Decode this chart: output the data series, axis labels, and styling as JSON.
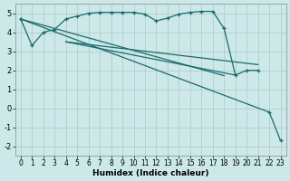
{
  "xlabel": "Humidex (Indice chaleur)",
  "bg_color": "#cce8e8",
  "grid_color": "#b0c8c8",
  "line_color": "#1a6b6b",
  "xlim": [
    -0.5,
    23.5
  ],
  "ylim": [
    -2.5,
    5.5
  ],
  "yticks": [
    -2,
    -1,
    0,
    1,
    2,
    3,
    4,
    5
  ],
  "xticks": [
    0,
    1,
    2,
    3,
    4,
    5,
    6,
    7,
    8,
    9,
    10,
    11,
    12,
    13,
    14,
    15,
    16,
    17,
    18,
    19,
    20,
    21,
    22,
    23
  ],
  "series": {
    "top_curve": {
      "x": [
        0,
        1,
        2,
        3,
        4,
        5,
        6,
        7,
        8,
        9,
        10,
        11,
        12,
        13,
        14,
        15,
        16,
        17,
        18,
        19,
        20,
        21
      ],
      "y": [
        4.7,
        3.3,
        4.0,
        4.15,
        4.7,
        4.85,
        5.0,
        5.05,
        5.05,
        5.05,
        5.05,
        4.95,
        4.6,
        4.75,
        4.95,
        5.05,
        5.1,
        5.1,
        4.2,
        1.75,
        2.0,
        2.0
      ],
      "marker": true
    },
    "diag1": {
      "x": [
        0,
        18
      ],
      "y": [
        4.7,
        1.72
      ],
      "marker": false
    },
    "diag2": {
      "x": [
        4,
        19
      ],
      "y": [
        3.5,
        1.75
      ],
      "marker": false
    },
    "diag3": {
      "x": [
        4,
        21
      ],
      "y": [
        3.5,
        2.3
      ],
      "marker": false
    },
    "drop_curve": {
      "x": [
        0,
        22,
        23
      ],
      "y": [
        4.7,
        -0.2,
        -1.7
      ],
      "marker": true
    }
  }
}
